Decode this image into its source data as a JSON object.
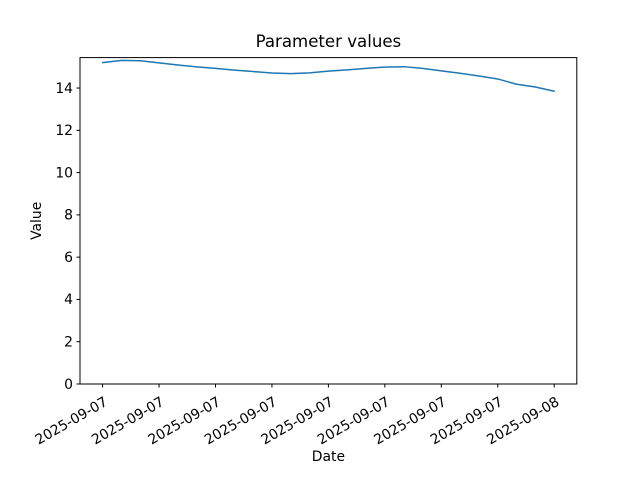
{
  "chart_data": {
    "type": "line",
    "title": "Parameter values",
    "xlabel": "Date",
    "ylabel": "Value",
    "grid": false,
    "legend": "none",
    "background_color": "#ffffff",
    "spine_color": "#000000",
    "xlim_hours": [
      -1.2,
      25.2
    ],
    "ylim": [
      0,
      15.44
    ],
    "y_ticks": [
      0,
      2,
      4,
      6,
      8,
      10,
      12,
      14
    ],
    "y_tick_labels": [
      "0",
      "2",
      "4",
      "6",
      "8",
      "10",
      "12",
      "14"
    ],
    "x_tick_hours": [
      0,
      3,
      6,
      9,
      12,
      15,
      18,
      21,
      24
    ],
    "x_tick_labels": [
      "2025-09-07",
      "2025-09-07",
      "2025-09-07",
      "2025-09-07",
      "2025-09-07",
      "2025-09-07",
      "2025-09-07",
      "2025-09-07",
      "2025-09-08"
    ],
    "x_tick_rotation_deg": 30,
    "series": [
      {
        "name": "parameter-values",
        "color": "#1f77b4",
        "line_width": 1.5,
        "x_hours": [
          0,
          1,
          2,
          3,
          4,
          5,
          6,
          7,
          8,
          9,
          10,
          11,
          12,
          13,
          14,
          15,
          16,
          17,
          18,
          19,
          20,
          21,
          22,
          23,
          24
        ],
        "values": [
          15.2,
          15.31,
          15.29,
          15.19,
          15.09,
          15.0,
          14.93,
          14.85,
          14.78,
          14.71,
          14.68,
          14.72,
          14.8,
          14.86,
          14.93,
          14.99,
          15.01,
          14.93,
          14.81,
          14.7,
          14.57,
          14.43,
          14.18,
          14.05,
          13.85
        ]
      }
    ]
  }
}
